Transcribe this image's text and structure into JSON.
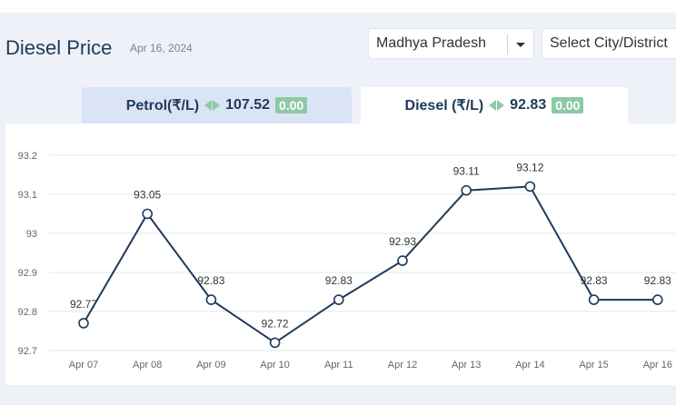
{
  "header": {
    "title": "Diesel Price",
    "date": "Apr 16, 2024",
    "state_select": "Madhya Pradesh",
    "city_select": "Select City/District"
  },
  "tabs": [
    {
      "label": "Petrol(₹/L)",
      "price": "107.52",
      "change": "0.00"
    },
    {
      "label": "Diesel (₹/L)",
      "price": "92.83",
      "change": "0.00"
    }
  ],
  "colors": {
    "line": "#1f3a5b",
    "badge": "#8ccaa5",
    "active_tab": "#ffffff",
    "inactive_tab": "#dbe4f5"
  },
  "chart_data": {
    "type": "line",
    "categories": [
      "Apr 07",
      "Apr 08",
      "Apr 09",
      "Apr 10",
      "Apr 11",
      "Apr 12",
      "Apr 13",
      "Apr 14",
      "Apr 15",
      "Apr 16"
    ],
    "values": [
      92.77,
      93.05,
      92.83,
      92.72,
      92.83,
      92.93,
      93.11,
      93.12,
      92.83,
      92.83
    ],
    "data_labels": [
      "92.77",
      "93.05",
      "92.83",
      "92.72",
      "92.83",
      "92.93",
      "93.11",
      "93.12",
      "92.83",
      "92.83"
    ],
    "yticks": [
      "92.7",
      "92.8",
      "92.9",
      "93",
      "93.1",
      "93.2"
    ],
    "ylim": [
      92.7,
      93.2
    ],
    "grid": true,
    "title": "",
    "xlabel": "",
    "ylabel": ""
  }
}
